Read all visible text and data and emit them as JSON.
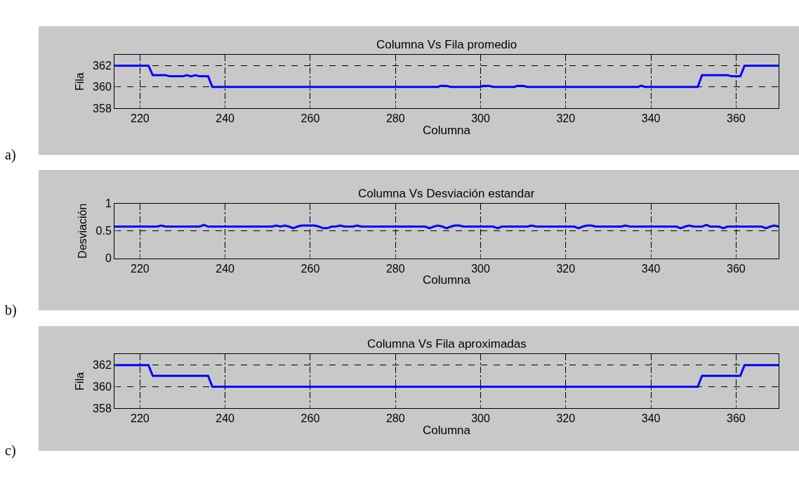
{
  "chart_data": [
    {
      "type": "line",
      "title": "Columna Vs Fila promedio",
      "xlabel": "Columna",
      "ylabel": "Fila",
      "annotations": [
        "a)"
      ],
      "xlim": [
        214,
        370
      ],
      "ylim": [
        358,
        363
      ],
      "xticks": [
        220,
        240,
        260,
        280,
        300,
        320,
        340,
        360
      ],
      "yticks": [
        358,
        360,
        362
      ],
      "grid": true,
      "line_style": "solid",
      "series": [
        {
          "color": "#0000ff",
          "x": [
            214,
            222,
            223,
            226,
            227,
            230,
            231,
            232,
            233,
            234,
            236,
            237,
            290,
            290.5,
            292,
            293,
            300,
            300.5,
            302,
            303,
            308,
            308.5,
            310,
            311,
            337,
            337.5,
            338,
            338.5,
            351,
            352,
            358,
            359,
            361,
            362,
            370
          ],
          "values": [
            362,
            362,
            361.1,
            361.1,
            361,
            361,
            361.1,
            361,
            361.1,
            361,
            361,
            360,
            360,
            360.1,
            360.1,
            360,
            360,
            360.1,
            360.1,
            360,
            360,
            360.1,
            360.1,
            360,
            360,
            360.1,
            360.1,
            360,
            360,
            361.1,
            361.1,
            361,
            361,
            362,
            362
          ]
        }
      ]
    },
    {
      "type": "line",
      "title": "Columna Vs Desviación estandar",
      "xlabel": "Columna",
      "ylabel": "Desviación",
      "annotations": [
        "b)"
      ],
      "xlim": [
        214,
        370
      ],
      "ylim": [
        0,
        1
      ],
      "xticks": [
        220,
        240,
        260,
        280,
        300,
        320,
        340,
        360
      ],
      "yticks": [
        0,
        0.5,
        1
      ],
      "grid": true,
      "line_style": "solid",
      "series": [
        {
          "color": "#0000ff",
          "x": [
            214,
            224,
            225,
            226,
            234,
            235,
            236,
            251,
            252,
            253,
            254,
            255,
            256,
            257,
            258,
            259,
            261,
            262,
            263,
            264,
            265,
            266,
            267,
            268,
            270,
            271,
            272,
            287,
            288,
            289,
            290,
            291,
            292,
            293,
            294,
            295,
            296,
            298,
            303,
            304,
            305,
            306,
            311,
            312,
            313,
            322,
            323,
            324,
            325,
            326,
            327,
            333,
            334,
            335,
            346,
            347,
            348,
            349,
            350,
            352,
            353,
            354,
            356,
            357,
            358,
            366,
            367,
            368,
            369,
            370
          ],
          "values": [
            0.58,
            0.58,
            0.6,
            0.58,
            0.58,
            0.61,
            0.58,
            0.58,
            0.6,
            0.58,
            0.6,
            0.58,
            0.55,
            0.58,
            0.6,
            0.6,
            0.6,
            0.58,
            0.55,
            0.55,
            0.58,
            0.58,
            0.6,
            0.58,
            0.58,
            0.6,
            0.58,
            0.58,
            0.55,
            0.58,
            0.6,
            0.58,
            0.55,
            0.58,
            0.6,
            0.6,
            0.58,
            0.58,
            0.58,
            0.55,
            0.58,
            0.58,
            0.58,
            0.6,
            0.58,
            0.58,
            0.55,
            0.58,
            0.6,
            0.6,
            0.58,
            0.58,
            0.6,
            0.58,
            0.58,
            0.55,
            0.58,
            0.6,
            0.58,
            0.58,
            0.61,
            0.58,
            0.58,
            0.55,
            0.58,
            0.58,
            0.55,
            0.58,
            0.6,
            0.58
          ]
        }
      ]
    },
    {
      "type": "line",
      "title": "Columna Vs Fila aproximadas",
      "xlabel": "Columna",
      "ylabel": "Fila",
      "annotations": [
        "c)"
      ],
      "xlim": [
        214,
        370
      ],
      "ylim": [
        358,
        363
      ],
      "xticks": [
        220,
        240,
        260,
        280,
        300,
        320,
        340,
        360
      ],
      "yticks": [
        358,
        360,
        362
      ],
      "grid": true,
      "line_style": "solid",
      "series": [
        {
          "color": "#0000ff",
          "x": [
            214,
            222,
            223,
            236,
            237,
            351,
            352,
            361,
            362,
            370
          ],
          "values": [
            362,
            362,
            361,
            361,
            360,
            360,
            361,
            361,
            362,
            362
          ]
        }
      ]
    }
  ]
}
